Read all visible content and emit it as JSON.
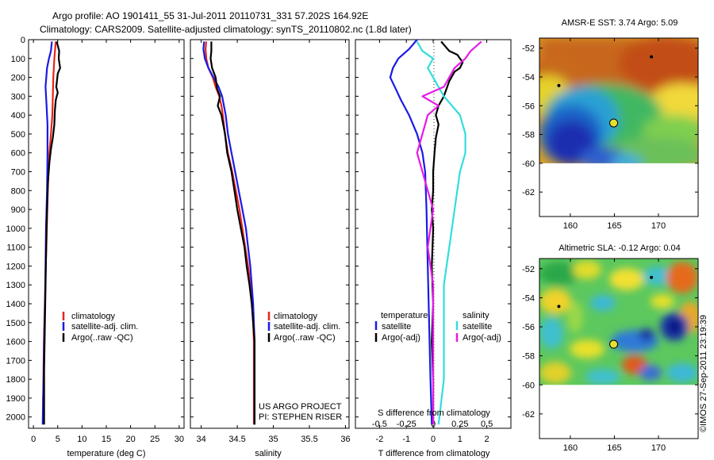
{
  "header": {
    "title": "Argo profile: AO 1901411_55 31-Jul-2011 20110731_331 57.202S 164.92E",
    "subtitle": "Climatology: CARS2009. Satellite-adjusted climatology: synTS_20110802.nc (1.8d later)"
  },
  "side_note": "©IMOS 27-Sep-2011 23:19:39",
  "colors": {
    "climatology": "#e8231a",
    "satellite": "#1a1ae6",
    "argo": "#000000",
    "sal_satellite": "#33dddd",
    "sal_argo": "#e61ae6"
  },
  "chart_data": [
    {
      "type": "line",
      "xlabel": "temperature (deg C)",
      "ylim": [
        2060,
        0
      ],
      "xlim": [
        -1,
        31
      ],
      "xticks": [
        0,
        5,
        10,
        15,
        20,
        25,
        30
      ],
      "yticks": [
        0,
        100,
        200,
        300,
        400,
        500,
        600,
        700,
        800,
        900,
        1000,
        1100,
        1200,
        1300,
        1400,
        1500,
        1600,
        1700,
        1800,
        1900,
        2000
      ],
      "legend": [
        "climatology",
        "satellite-adj. clim.",
        "Argo(..raw -QC)"
      ],
      "series": [
        {
          "name": "climatology",
          "color_key": "climatology",
          "points": [
            [
              4.6,
              10
            ],
            [
              4.3,
              100
            ],
            [
              4.1,
              200
            ],
            [
              4.0,
              300
            ],
            [
              3.9,
              400
            ],
            [
              3.6,
              500
            ],
            [
              3.3,
              600
            ],
            [
              3.1,
              700
            ],
            [
              2.95,
              800
            ],
            [
              2.85,
              900
            ],
            [
              2.75,
              1000
            ],
            [
              2.65,
              1100
            ],
            [
              2.55,
              1200
            ],
            [
              2.45,
              1300
            ],
            [
              2.35,
              1400
            ],
            [
              2.25,
              1500
            ],
            [
              2.15,
              1600
            ],
            [
              2.1,
              1700
            ],
            [
              2.05,
              1800
            ],
            [
              2.0,
              1900
            ],
            [
              1.95,
              2040
            ]
          ]
        },
        {
          "name": "satellite-adj. clim.",
          "color_key": "satellite",
          "points": [
            [
              3.8,
              10
            ],
            [
              3.6,
              60
            ],
            [
              3.2,
              100
            ],
            [
              2.8,
              150
            ],
            [
              2.5,
              250
            ],
            [
              2.7,
              350
            ],
            [
              2.9,
              450
            ],
            [
              2.9,
              600
            ],
            [
              2.8,
              800
            ],
            [
              2.6,
              1000
            ],
            [
              2.5,
              1200
            ],
            [
              2.4,
              1400
            ],
            [
              2.3,
              1500
            ],
            [
              2.2,
              1600
            ],
            [
              2.1,
              1800
            ],
            [
              2.0,
              1900
            ],
            [
              1.9,
              2040
            ]
          ]
        },
        {
          "name": "Argo(..raw -QC)",
          "color_key": "argo",
          "points": [
            [
              4.8,
              10
            ],
            [
              5.3,
              60
            ],
            [
              5.2,
              100
            ],
            [
              5.5,
              150
            ],
            [
              5.0,
              180
            ],
            [
              4.8,
              230
            ],
            [
              4.7,
              250
            ],
            [
              5.0,
              280
            ],
            [
              4.6,
              320
            ],
            [
              4.4,
              380
            ],
            [
              4.3,
              450
            ],
            [
              4.0,
              520
            ],
            [
              3.6,
              580
            ],
            [
              3.3,
              650
            ],
            [
              3.0,
              750
            ],
            [
              2.8,
              900
            ],
            [
              2.7,
              1000
            ],
            [
              2.6,
              1150
            ],
            [
              2.5,
              1300
            ],
            [
              2.4,
              1450
            ],
            [
              2.3,
              1600
            ],
            [
              2.2,
              1750
            ],
            [
              2.2,
              1900
            ],
            [
              2.2,
              2040
            ]
          ]
        }
      ]
    },
    {
      "type": "line",
      "xlabel": "salinity",
      "ylim": [
        2060,
        0
      ],
      "xlim": [
        33.85,
        36.05
      ],
      "xticks": [
        34,
        34.5,
        35,
        35.5,
        36
      ],
      "legend": [
        "climatology",
        "satellite-adj. clim.",
        "Argo(..raw -QC)"
      ],
      "annotations": [
        "US ARGO PROJECT",
        "PI: STEPHEN RISER"
      ],
      "series": [
        {
          "name": "climatology",
          "color_key": "climatology",
          "points": [
            [
              34.07,
              10
            ],
            [
              34.06,
              50
            ],
            [
              34.07,
              100
            ],
            [
              34.1,
              150
            ],
            [
              34.16,
              200
            ],
            [
              34.2,
              250
            ],
            [
              34.25,
              300
            ],
            [
              34.28,
              350
            ],
            [
              34.3,
              400
            ],
            [
              34.33,
              500
            ],
            [
              34.37,
              600
            ],
            [
              34.43,
              700
            ],
            [
              34.48,
              800
            ],
            [
              34.53,
              900
            ],
            [
              34.57,
              1000
            ],
            [
              34.61,
              1100
            ],
            [
              34.65,
              1200
            ],
            [
              34.68,
              1300
            ],
            [
              34.71,
              1400
            ],
            [
              34.72,
              1500
            ],
            [
              34.73,
              1600
            ],
            [
              34.73,
              1800
            ],
            [
              34.73,
              2040
            ]
          ]
        },
        {
          "name": "satellite-adj. clim.",
          "color_key": "satellite",
          "points": [
            [
              34.04,
              10
            ],
            [
              34.03,
              50
            ],
            [
              34.05,
              100
            ],
            [
              34.1,
              150
            ],
            [
              34.17,
              200
            ],
            [
              34.24,
              250
            ],
            [
              34.29,
              300
            ],
            [
              34.34,
              400
            ],
            [
              34.37,
              500
            ],
            [
              34.42,
              600
            ],
            [
              34.47,
              700
            ],
            [
              34.52,
              800
            ],
            [
              34.57,
              900
            ],
            [
              34.62,
              1000
            ],
            [
              34.65,
              1100
            ],
            [
              34.68,
              1200
            ],
            [
              34.7,
              1300
            ],
            [
              34.72,
              1400
            ],
            [
              34.73,
              1500
            ],
            [
              34.74,
              1600
            ],
            [
              34.74,
              1800
            ],
            [
              34.74,
              2040
            ]
          ]
        },
        {
          "name": "Argo(..raw -QC)",
          "color_key": "argo",
          "points": [
            [
              34.14,
              10
            ],
            [
              34.14,
              60
            ],
            [
              34.13,
              100
            ],
            [
              34.15,
              150
            ],
            [
              34.2,
              200
            ],
            [
              34.22,
              260
            ],
            [
              34.26,
              300
            ],
            [
              34.23,
              350
            ],
            [
              34.28,
              400
            ],
            [
              34.33,
              500
            ],
            [
              34.36,
              600
            ],
            [
              34.42,
              700
            ],
            [
              34.46,
              800
            ],
            [
              34.5,
              900
            ],
            [
              34.55,
              1000
            ],
            [
              34.6,
              1100
            ],
            [
              34.63,
              1200
            ],
            [
              34.67,
              1300
            ],
            [
              34.7,
              1400
            ],
            [
              34.72,
              1500
            ],
            [
              34.74,
              1600
            ],
            [
              34.74,
              1800
            ],
            [
              34.74,
              2040
            ]
          ]
        }
      ]
    },
    {
      "type": "line",
      "xlabel": "T difference from climatology",
      "xlabel_top": "S difference from climatology",
      "xlim": [
        -2.9,
        2.9
      ],
      "ylim": [
        2060,
        0
      ],
      "xticks": [
        -2,
        -1,
        0,
        1,
        2
      ],
      "xticks_top": [
        -0.5,
        -0.25,
        0,
        0.25,
        0.5
      ],
      "legend_headers": [
        "temperature",
        "salinity"
      ],
      "legend": [
        "satellite",
        "Argo(-adj)",
        "satellite",
        "Argo(-adj)"
      ],
      "series": [
        {
          "name": "satellite",
          "group": "temperature",
          "color_key": "satellite",
          "points": [
            [
              -0.6,
              0
            ],
            [
              -0.9,
              50
            ],
            [
              -1.3,
              100
            ],
            [
              -1.5,
              150
            ],
            [
              -1.6,
              200
            ],
            [
              -1.4,
              260
            ],
            [
              -1.2,
              320
            ],
            [
              -0.9,
              400
            ],
            [
              -0.6,
              500
            ],
            [
              -0.4,
              600
            ],
            [
              -0.3,
              700
            ],
            [
              -0.25,
              900
            ],
            [
              -0.2,
              1200
            ],
            [
              -0.15,
              1500
            ],
            [
              -0.1,
              1800
            ],
            [
              -0.05,
              2040
            ]
          ]
        },
        {
          "name": "Argo(-adj)",
          "group": "temperature",
          "color_key": "argo",
          "points": [
            [
              0.3,
              10
            ],
            [
              0.6,
              60
            ],
            [
              0.9,
              80
            ],
            [
              1.1,
              120
            ],
            [
              1.0,
              150
            ],
            [
              0.8,
              170
            ],
            [
              0.6,
              220
            ],
            [
              0.4,
              300
            ],
            [
              0.2,
              350
            ],
            [
              0.1,
              400
            ],
            [
              0.2,
              450
            ],
            [
              0.1,
              520
            ],
            [
              0.05,
              600
            ],
            [
              0.0,
              700
            ],
            [
              0.0,
              800
            ],
            [
              -0.05,
              900
            ],
            [
              0.0,
              1000
            ],
            [
              -0.05,
              1200
            ],
            [
              0.0,
              1400
            ],
            [
              -0.05,
              1600
            ],
            [
              0.0,
              1800
            ],
            [
              0.0,
              2040
            ]
          ]
        },
        {
          "name": "satellite",
          "group": "salinity",
          "color_key": "sal_satellite",
          "points": [
            [
              -0.15,
              10
            ],
            [
              -0.1,
              60
            ],
            [
              0.0,
              100
            ],
            [
              -0.05,
              150
            ],
            [
              0.0,
              200
            ],
            [
              0.1,
              300
            ],
            [
              0.25,
              400
            ],
            [
              0.3,
              500
            ],
            [
              0.3,
              600
            ],
            [
              0.25,
              700
            ],
            [
              0.2,
              900
            ],
            [
              0.15,
              1100
            ],
            [
              0.1,
              1300
            ],
            [
              0.1,
              1600
            ],
            [
              0.1,
              1800
            ],
            [
              0.05,
              2040
            ]
          ]
        },
        {
          "name": "Argo(-adj)",
          "group": "salinity",
          "color_key": "sal_argo",
          "points": [
            [
              0.45,
              10
            ],
            [
              0.35,
              60
            ],
            [
              0.3,
              100
            ],
            [
              0.2,
              150
            ],
            [
              0.15,
              200
            ],
            [
              0.1,
              250
            ],
            [
              -0.1,
              300
            ],
            [
              0.05,
              350
            ],
            [
              -0.05,
              400
            ],
            [
              -0.1,
              500
            ],
            [
              -0.15,
              600
            ],
            [
              -0.1,
              700
            ],
            [
              -0.05,
              800
            ],
            [
              0.0,
              900
            ],
            [
              -0.05,
              1100
            ],
            [
              0.0,
              1300
            ],
            [
              0.0,
              1600
            ],
            [
              0.0,
              1800
            ],
            [
              0.0,
              2040
            ]
          ]
        }
      ]
    },
    {
      "type": "heatmap",
      "title": "AMSR-E SST: 3.74 Argo: 5.09",
      "xticks": [
        160,
        165,
        170
      ],
      "yticks": [
        -52,
        -54,
        -56,
        -58,
        -60,
        -62
      ],
      "xlim": [
        156.5,
        174.5
      ],
      "ylim": [
        -63.7,
        -51.3
      ],
      "data_lat_min": -60,
      "argo_position": [
        164.92,
        -57.202
      ],
      "markers": [
        [
          158.7,
          -54.6
        ],
        [
          169.2,
          -52.6
        ]
      ]
    },
    {
      "type": "heatmap",
      "title": "Altimetric SLA: -0.12 Argo: 0.04",
      "xticks": [
        160,
        165,
        170
      ],
      "yticks": [
        -52,
        -54,
        -56,
        -58,
        -60,
        -62
      ],
      "xlim": [
        156.5,
        174.5
      ],
      "ylim": [
        -63.7,
        -51.3
      ],
      "data_lat_min": -60,
      "argo_position": [
        164.92,
        -57.202
      ],
      "markers": [
        [
          158.7,
          -54.6
        ],
        [
          169.2,
          -52.6
        ]
      ]
    }
  ]
}
